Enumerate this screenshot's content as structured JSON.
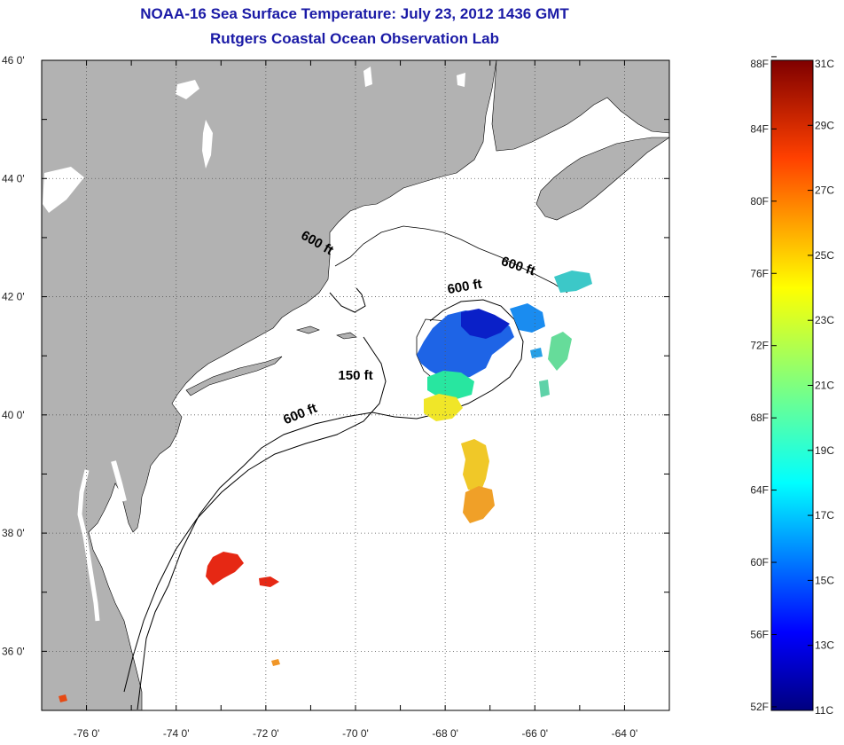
{
  "header": {
    "title": "NOAA-16 Sea Surface Temperature:  July 23, 2012 1436 GMT",
    "subtitle": "Rutgers Coastal Ocean Observation Lab"
  },
  "axes": {
    "lon_ticks": [
      "-76 0'",
      "-74 0'",
      "-72 0'",
      "-70 0'",
      "-68 0'",
      "-66 0'",
      "-64 0'"
    ],
    "lat_ticks": [
      "46 0'",
      "44 0'",
      "42 0'",
      "40 0'",
      "38 0'",
      "36 0'"
    ],
    "lon_range": [
      -77,
      -63
    ],
    "lat_range": [
      35,
      46
    ],
    "grid": "dotted"
  },
  "colorbar": {
    "fahrenheit_labels": [
      "88F",
      "84F",
      "80F",
      "76F",
      "72F",
      "68F",
      "64F",
      "60F",
      "56F",
      "52F"
    ],
    "celsius_labels": [
      "31C",
      "29C",
      "27C",
      "25C",
      "23C",
      "21C",
      "19C",
      "17C",
      "15C",
      "13C",
      "11C"
    ],
    "min_c": 11,
    "max_c": 31
  },
  "contours": {
    "labels": [
      {
        "text": "600 ft",
        "lon": -67.55,
        "lat": 42.1,
        "angle": -10
      },
      {
        "text": "600 ft",
        "lon": -70.9,
        "lat": 42.85,
        "angle": 30
      },
      {
        "text": "600 ft",
        "lon": -66.4,
        "lat": 42.45,
        "angle": 18
      },
      {
        "text": "150 ft",
        "lon": -70.0,
        "lat": 40.6,
        "angle": 0
      },
      {
        "text": "600 ft",
        "lon": -71.2,
        "lat": 39.95,
        "angle": -22
      }
    ]
  },
  "colors": {
    "land": "#b2b2b2",
    "ocean": "#ffffff",
    "title": "#1a1aa6"
  }
}
